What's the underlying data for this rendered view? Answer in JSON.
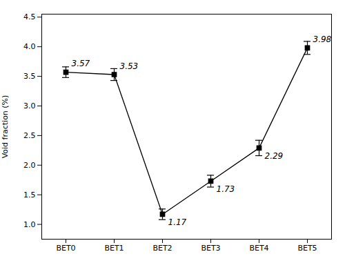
{
  "chart_data": {
    "type": "line",
    "categories": [
      "BET0",
      "BET1",
      "BET2",
      "BET3",
      "BET4",
      "BET5"
    ],
    "values": [
      3.57,
      3.53,
      1.17,
      1.73,
      2.29,
      3.98
    ],
    "errors": [
      0.09,
      0.1,
      0.09,
      0.1,
      0.13,
      0.11
    ],
    "ylabel": "Void fraction (%)",
    "ylim": [
      0.75,
      4.55
    ],
    "yticks": [
      {
        "value": 1.0,
        "label": "1.0"
      },
      1.5,
      {
        "value": 2.0,
        "label": "2.0"
      },
      2.5,
      {
        "value": 3.0,
        "label": "3.0"
      },
      3.5,
      {
        "value": 4.0,
        "label": "4.0"
      },
      4.5
    ],
    "color": "#000000",
    "marker": "square",
    "data_labels": true,
    "grid": false
  }
}
